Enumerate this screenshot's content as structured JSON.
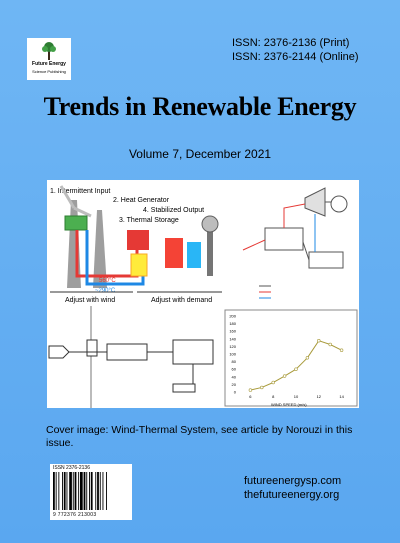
{
  "logo": {
    "line1": "Future Energy",
    "line2": "Science Publishing"
  },
  "issn_print": "ISSN: 2376-2136 (Print)",
  "issn_online": "ISSN: 2376-2144 (Online)",
  "title": "Trends in Renewable Energy",
  "volume": "Volume 7, December 2021",
  "figure": {
    "label1": "1. Intermittent Input",
    "label2": "2. Heat Generator",
    "label3": "3. Thermal Storage",
    "label4": "4. Stabilized Output",
    "temp_hot": "560°C",
    "temp_cold": "~290°C",
    "adjust_wind": "Adjust with wind",
    "adjust_demand": "Adjust with demand",
    "x_axis_label": "WIND SPEED (m/s)"
  },
  "chart_data": {
    "type": "line",
    "x": [
      6,
      7,
      8,
      9,
      10,
      11,
      12,
      13,
      14
    ],
    "y": [
      5,
      12,
      25,
      42,
      60,
      90,
      135,
      125,
      110
    ],
    "xlabel": "WIND SPEED (m/s)",
    "xticks": [
      6,
      8,
      10,
      12,
      14
    ],
    "yticks": [
      0,
      20,
      40,
      60,
      80,
      100,
      120,
      140,
      160,
      180,
      200
    ],
    "xlim": [
      5,
      15
    ],
    "ylim": [
      0,
      200
    ]
  },
  "caption": "Cover image: Wind-Thermal System, see article by Norouzi in this issue.",
  "barcode": {
    "issn_label": "ISSN 2376-2136",
    "number": "9 772376 213003"
  },
  "website1": "futureenergysp.com",
  "website2": "thefutureenergy.org"
}
